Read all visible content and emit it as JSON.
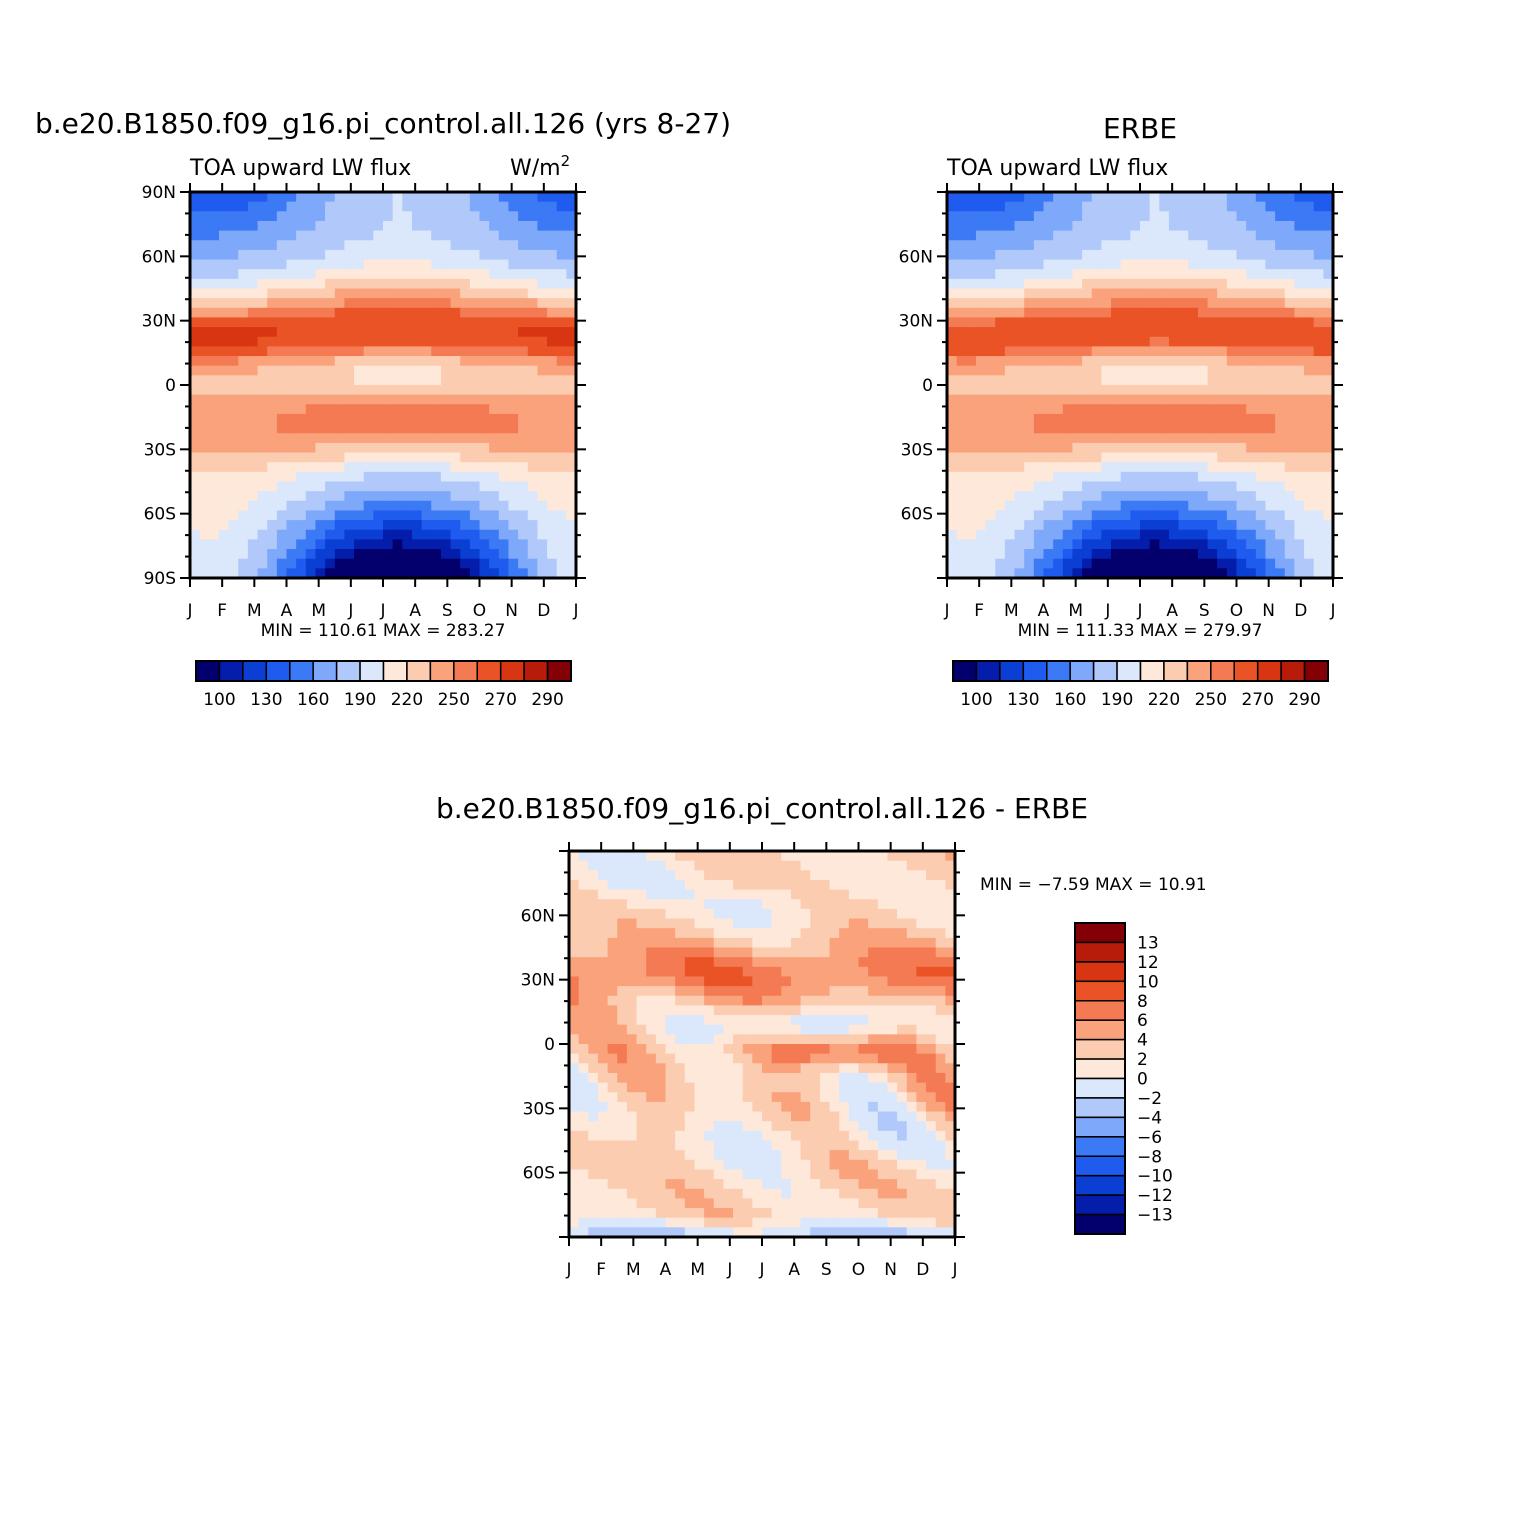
{
  "colors": {
    "level_colors_abs": [
      "#03006d",
      "#041daa",
      "#0b3ed3",
      "#1e5bee",
      "#3c79f5",
      "#7ea8f9",
      "#b0c9fa",
      "#dbe7fb",
      "#fee8d9",
      "#fcccb1",
      "#f9a27b",
      "#f37a52",
      "#ea5326",
      "#d83612",
      "#b71c0b",
      "#830006"
    ],
    "level_colors_diff": [
      "#03006d",
      "#041daa",
      "#0b3ed3",
      "#1e5bee",
      "#3c79f5",
      "#7ea8f9",
      "#b0c9fa",
      "#dbe7fb",
      "#fee8d9",
      "#fcccb1",
      "#f9a27b",
      "#f37a52",
      "#ea5326",
      "#d83612",
      "#b71c0b",
      "#830006"
    ]
  },
  "chart_data": [
    {
      "type": "heatmap",
      "title": "b.e20.B1850.f09_g16.pi_control.all.126 (yrs 8-27)",
      "subtitle_left": "TOA upward LW flux",
      "subtitle_right": "W/m",
      "units_superscript": "2",
      "x_tick_labels": [
        "J",
        "F",
        "M",
        "A",
        "M",
        "J",
        "J",
        "A",
        "S",
        "O",
        "N",
        "D",
        "J"
      ],
      "y_tick_labels": [
        "90N",
        "60N",
        "30N",
        "0",
        "30S",
        "60S",
        "90S"
      ],
      "ylim": [
        -90,
        90
      ],
      "min_max_text": "MIN = 110.61  MAX = 283.27",
      "min": 110.61,
      "max": 283.27,
      "colorbar_labels": [
        "100",
        "130",
        "160",
        "190",
        "220",
        "250",
        "270",
        "290"
      ],
      "colorbar_orientation": "horizontal"
    },
    {
      "type": "heatmap",
      "title": "ERBE",
      "subtitle_left": "TOA upward LW flux",
      "x_tick_labels": [
        "J",
        "F",
        "M",
        "A",
        "M",
        "J",
        "J",
        "A",
        "S",
        "O",
        "N",
        "D",
        "J"
      ],
      "y_tick_labels": [
        "60N",
        "30N",
        "0",
        "30S",
        "60S"
      ],
      "ylim": [
        -90,
        90
      ],
      "min_max_text": "MIN = 111.33  MAX = 279.97",
      "min": 111.33,
      "max": 279.97,
      "colorbar_labels": [
        "100",
        "130",
        "160",
        "190",
        "220",
        "250",
        "270",
        "290"
      ],
      "colorbar_orientation": "horizontal"
    },
    {
      "type": "heatmap",
      "title": "b.e20.B1850.f09_g16.pi_control.all.126 - ERBE",
      "x_tick_labels": [
        "J",
        "F",
        "M",
        "A",
        "M",
        "J",
        "J",
        "A",
        "S",
        "O",
        "N",
        "D",
        "J"
      ],
      "y_tick_labels": [
        "60N",
        "30N",
        "0",
        "30S",
        "60S"
      ],
      "ylim": [
        -90,
        90
      ],
      "min_max_text": "MIN =   -7.59  MAX =    10.91",
      "min": -7.59,
      "max": 10.91,
      "colorbar_labels": [
        "13",
        "12",
        "10",
        "8",
        "6",
        "4",
        "2",
        "0",
        "-2",
        "-4",
        "-6",
        "-8",
        "-10",
        "-12",
        "-13"
      ],
      "colorbar_orientation": "vertical"
    }
  ]
}
